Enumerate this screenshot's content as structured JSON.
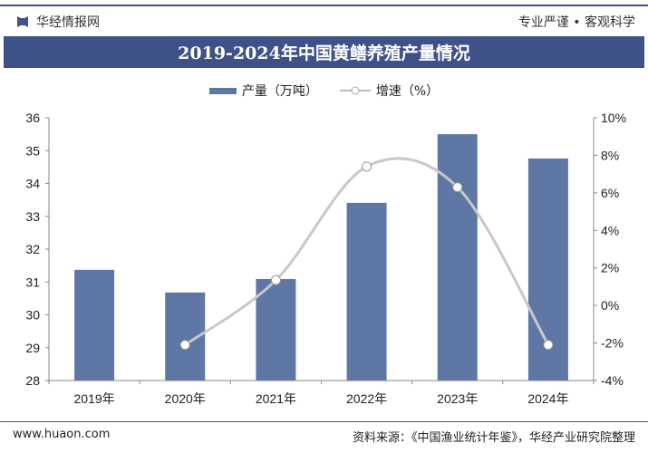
{
  "header": {
    "brand": "华经情报网",
    "slogan": "专业严谨 • 客观科学",
    "title": "2019-2024年中国黄鳝养殖产量情况"
  },
  "legend": {
    "bar": "产量（万吨）",
    "line": "增速（%）"
  },
  "footer": {
    "website": "www.huaon.com",
    "source": "资料来源：《中国渔业统计年鉴》，华经产业研究院整理"
  },
  "colors": {
    "bar": "#5f77a5",
    "line": "#c8c8c8",
    "brand": "#3f5288"
  },
  "chart_data": {
    "type": "bar+line",
    "title": "2019-2024年中国黄鳝养殖产量情况",
    "categories": [
      "2019年",
      "2020年",
      "2021年",
      "2022年",
      "2023年",
      "2024年"
    ],
    "series": [
      {
        "name": "产量（万吨）",
        "type": "bar",
        "axis": "left",
        "values": [
          31.37,
          30.68,
          31.09,
          33.41,
          35.5,
          34.76
        ]
      },
      {
        "name": "增速（%）",
        "type": "line",
        "axis": "right",
        "values": [
          null,
          -2.1,
          1.35,
          7.4,
          6.3,
          -2.1
        ]
      }
    ],
    "y_left": {
      "lim": [
        28,
        36
      ],
      "ticks": [
        "28",
        "29",
        "30",
        "31",
        "32",
        "33",
        "34",
        "35",
        "36"
      ]
    },
    "y_right": {
      "lim": [
        -4,
        10
      ],
      "ticks": [
        "-4%",
        "-2%",
        "0%",
        "2%",
        "4%",
        "6%",
        "8%",
        "10%"
      ]
    },
    "grid": false,
    "legend_position": "top"
  }
}
